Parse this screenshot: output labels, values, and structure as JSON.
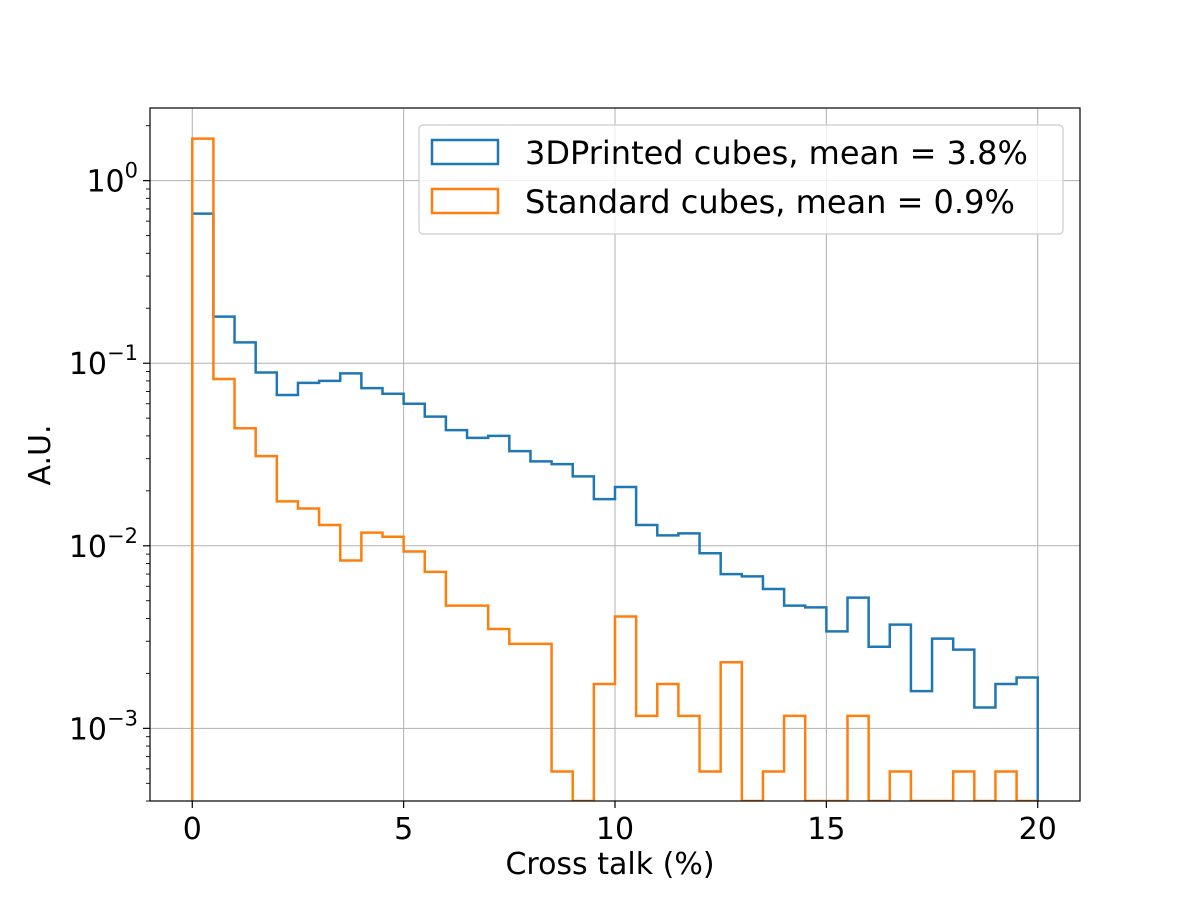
{
  "chart_data": {
    "type": "histogram-step",
    "xlabel": "Cross talk (%)",
    "ylabel": "A.U.",
    "yscale": "log",
    "xlim": [
      -1,
      21
    ],
    "ylim": [
      0.0004,
      2.5
    ],
    "grid": true,
    "legend_position": "upper-right",
    "x_ticks": [
      {
        "value": 0,
        "label": "0"
      },
      {
        "value": 5,
        "label": "5"
      },
      {
        "value": 10,
        "label": "10"
      },
      {
        "value": 15,
        "label": "15"
      },
      {
        "value": 20,
        "label": "20"
      }
    ],
    "y_ticks": [
      {
        "value": 1,
        "base": "10",
        "exp": "0"
      },
      {
        "value": 0.1,
        "base": "10",
        "exp": "−1"
      },
      {
        "value": 0.01,
        "base": "10",
        "exp": "−2"
      },
      {
        "value": 0.001,
        "base": "10",
        "exp": "−3"
      }
    ],
    "bin_edges": [
      0,
      0.5,
      1,
      1.5,
      2,
      2.5,
      3,
      3.5,
      4,
      4.5,
      5,
      5.5,
      6,
      6.5,
      7,
      7.5,
      8,
      8.5,
      9,
      9.5,
      10,
      10.5,
      11,
      11.5,
      12,
      12.5,
      13,
      13.5,
      14,
      14.5,
      15,
      15.5,
      16,
      16.5,
      17,
      17.5,
      18,
      18.5,
      19,
      19.5,
      20
    ],
    "series": [
      {
        "name": "3DPrinted cubes, mean = 3.8%",
        "color": "#1f77b4",
        "values": [
          0.66,
          0.18,
          0.13,
          0.089,
          0.067,
          0.078,
          0.08,
          0.088,
          0.073,
          0.068,
          0.06,
          0.051,
          0.043,
          0.039,
          0.04,
          0.033,
          0.029,
          0.028,
          0.024,
          0.018,
          0.021,
          0.013,
          0.0114,
          0.0117,
          0.0091,
          0.007,
          0.0068,
          0.0058,
          0.0047,
          0.0046,
          0.0034,
          0.0052,
          0.0028,
          0.0037,
          0.0016,
          0.0031,
          0.0027,
          0.0013,
          0.00175,
          0.0019
        ]
      },
      {
        "name": "Standard cubes, mean = 0.9%",
        "color": "#ff7f0e",
        "values": [
          1.7,
          0.082,
          0.044,
          0.031,
          0.0175,
          0.016,
          0.013,
          0.0083,
          0.0118,
          0.0112,
          0.0093,
          0.0072,
          0.0047,
          0.0047,
          0.0035,
          0.0029,
          0.0029,
          0.00058,
          0,
          0.00175,
          0.0041,
          0.00117,
          0.00175,
          0.00117,
          0.00058,
          0.0023,
          0,
          0.00058,
          0.00117,
          0,
          0,
          0.00117,
          0,
          0.00058,
          0,
          0,
          0.00058,
          0,
          0.00058,
          0
        ]
      }
    ]
  }
}
